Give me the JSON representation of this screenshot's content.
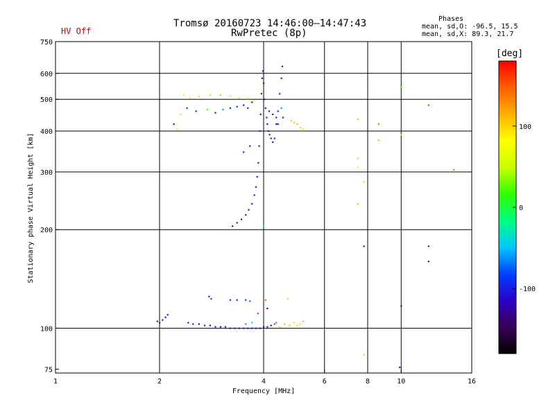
{
  "header": {
    "title": "Tromsø 20160723 14:46:00–14:47:43",
    "subtitle": "RwPretec (8p)",
    "status": "HV Off",
    "status_color": "#d40000",
    "phases_title": "Phases",
    "phases_o": "mean, sd,O: -96.5, 15.5",
    "phases_x": "mean, sd,X:  89.3, 21.7"
  },
  "colorbar": {
    "title": "[deg]",
    "min": -180,
    "max": 180,
    "ticks": [
      {
        "value": 100,
        "label": "100"
      },
      {
        "value": 0,
        "label": "0"
      },
      {
        "value": -100,
        "label": "-100"
      }
    ],
    "colors": [
      "#000000",
      "#3a0055",
      "#2a00c8",
      "#0040ff",
      "#00c8ff",
      "#00ff80",
      "#30ff00",
      "#c8ff00",
      "#ffff00",
      "#ffb000",
      "#ff6000",
      "#ff0000"
    ]
  },
  "chart_data": {
    "type": "scatter",
    "title": "Tromsø 20160723 14:46:00–14:47:43",
    "subtitle": "RwPretec (8p)",
    "xlabel": "Frequency [MHz]",
    "ylabel": "Stationary phase Virtual Height [km]",
    "x_scale": "log",
    "y_scale": "log",
    "xlim": [
      1,
      16
    ],
    "ylim": [
      73,
      750
    ],
    "x_ticks": [
      {
        "v": 1,
        "l": "1"
      },
      {
        "v": 2,
        "l": "2"
      },
      {
        "v": 4,
        "l": "4"
      },
      {
        "v": 6,
        "l": "6"
      },
      {
        "v": 8,
        "l": "8"
      },
      {
        "v": 10,
        "l": "10"
      },
      {
        "v": 16,
        "l": "16"
      }
    ],
    "y_ticks": [
      {
        "v": 75,
        "l": "75"
      },
      {
        "v": 100,
        "l": "100"
      },
      {
        "v": 200,
        "l": "200"
      },
      {
        "v": 300,
        "l": "300"
      },
      {
        "v": 400,
        "l": "400"
      },
      {
        "v": 500,
        "l": "500"
      },
      {
        "v": 600,
        "l": "600"
      },
      {
        "v": 750,
        "l": "750"
      }
    ],
    "vgrid": [
      2,
      4,
      6,
      8,
      10
    ],
    "hgrid": [
      100,
      200,
      300,
      400,
      500,
      600
    ],
    "grid": true,
    "color_by": "phase [deg]",
    "points": [
      [
        1.97,
        105,
        -100
      ],
      [
        2.0,
        104,
        -95
      ],
      [
        2.04,
        106,
        -105
      ],
      [
        2.08,
        108,
        -100
      ],
      [
        2.11,
        110,
        -95
      ],
      [
        2.42,
        104,
        -100
      ],
      [
        2.5,
        103,
        -98
      ],
      [
        2.6,
        103,
        -105
      ],
      [
        2.7,
        102,
        -100
      ],
      [
        2.8,
        102,
        -96
      ],
      [
        2.9,
        101,
        -100
      ],
      [
        3.0,
        101,
        -102
      ],
      [
        3.1,
        101,
        -98
      ],
      [
        3.2,
        100,
        -100
      ],
      [
        3.3,
        100,
        -105
      ],
      [
        3.4,
        100,
        -100
      ],
      [
        3.5,
        100,
        -95
      ],
      [
        3.6,
        100,
        -100
      ],
      [
        3.7,
        100,
        -102
      ],
      [
        3.8,
        100,
        -98
      ],
      [
        3.9,
        100,
        -100
      ],
      [
        4.0,
        101,
        -100
      ],
      [
        4.1,
        101,
        -96
      ],
      [
        4.2,
        102,
        -100
      ],
      [
        4.3,
        103,
        -70
      ],
      [
        3.55,
        103,
        -60
      ],
      [
        3.7,
        104,
        -40
      ],
      [
        4.35,
        104,
        150
      ],
      [
        4.6,
        103,
        110
      ],
      [
        4.75,
        102,
        100
      ],
      [
        4.9,
        104,
        95
      ],
      [
        5.0,
        102,
        105
      ],
      [
        5.1,
        103,
        100
      ],
      [
        5.2,
        105,
        110
      ],
      [
        4.45,
        101,
        100
      ],
      [
        2.78,
        125,
        -100
      ],
      [
        2.82,
        123,
        -80
      ],
      [
        3.2,
        122,
        -100
      ],
      [
        3.35,
        122,
        -95
      ],
      [
        3.55,
        122,
        -85
      ],
      [
        3.65,
        121,
        -70
      ],
      [
        4.05,
        122,
        150
      ],
      [
        4.7,
        123,
        40
      ],
      [
        3.85,
        111,
        160
      ],
      [
        4.1,
        115,
        -120
      ],
      [
        3.25,
        205,
        -100
      ],
      [
        3.35,
        210,
        -100
      ],
      [
        3.45,
        215,
        -100
      ],
      [
        3.55,
        222,
        -100
      ],
      [
        3.62,
        230,
        -100
      ],
      [
        3.7,
        240,
        -100
      ],
      [
        3.76,
        255,
        -100
      ],
      [
        3.8,
        270,
        -100
      ],
      [
        3.83,
        290,
        -100
      ],
      [
        3.86,
        320,
        -100
      ],
      [
        3.88,
        360,
        -100
      ],
      [
        3.9,
        400,
        -100
      ],
      [
        3.92,
        450,
        -100
      ],
      [
        3.94,
        520,
        -100
      ],
      [
        3.96,
        580,
        -100
      ],
      [
        3.98,
        610,
        -100
      ],
      [
        4.0,
        560,
        -100
      ],
      [
        4.02,
        500,
        -100
      ],
      [
        4.05,
        470,
        -100
      ],
      [
        4.08,
        440,
        -100
      ],
      [
        4.1,
        420,
        -100
      ],
      [
        4.13,
        400,
        -100
      ],
      [
        4.16,
        390,
        -100
      ],
      [
        4.2,
        380,
        -100
      ],
      [
        4.25,
        370,
        -100
      ],
      [
        4.3,
        380,
        -100
      ],
      [
        4.35,
        420,
        -100
      ],
      [
        4.4,
        460,
        -100
      ],
      [
        4.45,
        520,
        -100
      ],
      [
        4.5,
        580,
        -100
      ],
      [
        4.53,
        630,
        -100
      ],
      [
        4.15,
        460,
        -100
      ],
      [
        4.25,
        450,
        -100
      ],
      [
        4.35,
        440,
        -100
      ],
      [
        4.55,
        440,
        -95
      ],
      [
        3.5,
        345,
        -100
      ],
      [
        3.65,
        360,
        -100
      ],
      [
        4.4,
        420,
        -100
      ],
      [
        4.0,
        205,
        -10
      ],
      [
        4.5,
        470,
        -60
      ],
      [
        2.25,
        405,
        100
      ],
      [
        2.2,
        420,
        -100
      ],
      [
        2.35,
        515,
        90
      ],
      [
        2.45,
        505,
        80
      ],
      [
        2.6,
        510,
        95
      ],
      [
        2.8,
        515,
        100
      ],
      [
        3.0,
        515,
        110
      ],
      [
        3.2,
        512,
        95
      ],
      [
        3.4,
        505,
        90
      ],
      [
        3.6,
        503,
        100
      ],
      [
        3.75,
        495,
        80
      ],
      [
        2.4,
        470,
        -80
      ],
      [
        2.55,
        460,
        -90
      ],
      [
        2.75,
        465,
        20
      ],
      [
        2.9,
        455,
        -100
      ],
      [
        3.05,
        465,
        -60
      ],
      [
        3.2,
        470,
        -100
      ],
      [
        3.35,
        475,
        -80
      ],
      [
        3.5,
        480,
        -100
      ],
      [
        3.6,
        470,
        -90
      ],
      [
        3.7,
        490,
        -100
      ],
      [
        2.3,
        450,
        100
      ],
      [
        4.8,
        430,
        100
      ],
      [
        4.9,
        425,
        105
      ],
      [
        5.0,
        420,
        110
      ],
      [
        5.1,
        410,
        100
      ],
      [
        5.2,
        405,
        95
      ],
      [
        7.5,
        435,
        110
      ],
      [
        7.5,
        330,
        40
      ],
      [
        7.5,
        310,
        80
      ],
      [
        7.8,
        280,
        100
      ],
      [
        7.5,
        240,
        110
      ],
      [
        8.6,
        420,
        140
      ],
      [
        8.6,
        375,
        120
      ],
      [
        7.8,
        178,
        -100
      ],
      [
        7.8,
        83,
        100
      ],
      [
        10.0,
        545,
        20
      ],
      [
        10.0,
        390,
        100
      ],
      [
        12.0,
        480,
        160
      ],
      [
        14.2,
        305,
        140
      ],
      [
        12.0,
        178,
        -100
      ],
      [
        12.0,
        160,
        -100
      ],
      [
        10.0,
        117,
        -100
      ],
      [
        9.9,
        76,
        -100
      ]
    ]
  }
}
